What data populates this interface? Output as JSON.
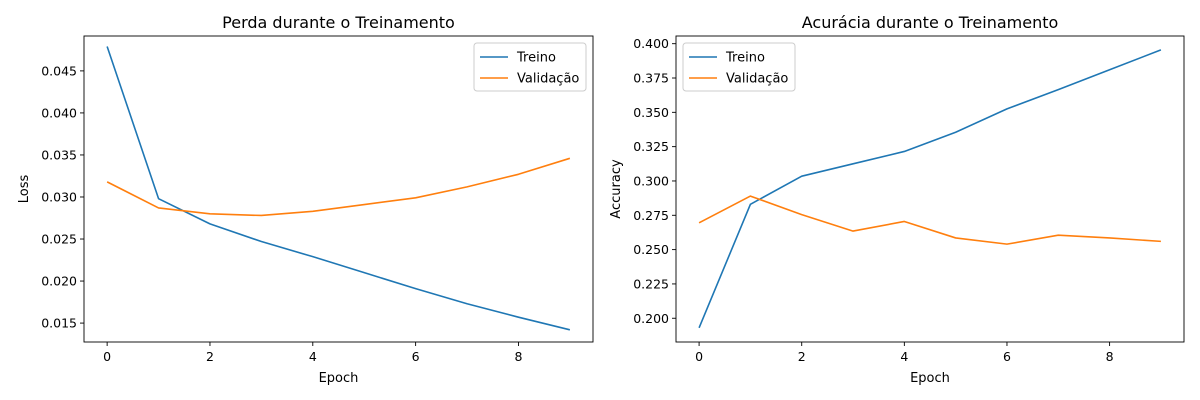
{
  "chart_data": [
    {
      "type": "line",
      "title": "Perda durante o Treinamento",
      "xlabel": "Epoch",
      "ylabel": "Loss",
      "x": [
        0,
        1,
        2,
        3,
        4,
        5,
        6,
        7,
        8,
        9
      ],
      "xlim": [
        -0.45,
        9.45
      ],
      "ylim": [
        0.01275,
        0.04915
      ],
      "xticks": [
        0,
        2,
        4,
        6,
        8
      ],
      "yticks": [
        0.015,
        0.02,
        0.025,
        0.03,
        0.035,
        0.04,
        0.045
      ],
      "ytick_labels": [
        "0.015",
        "0.020",
        "0.025",
        "0.030",
        "0.035",
        "0.040",
        "0.045"
      ],
      "legend_position": "top-right",
      "grid": false,
      "series": [
        {
          "name": "Treino",
          "color": "#1f77b4",
          "values": [
            0.0479,
            0.0298,
            0.0268,
            0.0247,
            0.0229,
            0.021,
            0.0191,
            0.0173,
            0.0157,
            0.0142
          ]
        },
        {
          "name": "Validação",
          "color": "#ff7f0e",
          "values": [
            0.0318,
            0.0287,
            0.028,
            0.0278,
            0.0283,
            0.0291,
            0.0299,
            0.0312,
            0.0327,
            0.0346
          ]
        }
      ]
    },
    {
      "type": "line",
      "title": "Acurácia durante o Treinamento",
      "xlabel": "Epoch",
      "ylabel": "Accuracy",
      "x": [
        0,
        1,
        2,
        3,
        4,
        5,
        6,
        7,
        8,
        9
      ],
      "xlim": [
        -0.45,
        9.45
      ],
      "ylim": [
        0.1827,
        0.4056
      ],
      "xticks": [
        0,
        2,
        4,
        6,
        8
      ],
      "yticks": [
        0.2,
        0.225,
        0.25,
        0.275,
        0.3,
        0.325,
        0.35,
        0.375,
        0.4
      ],
      "ytick_labels": [
        "0.200",
        "0.225",
        "0.250",
        "0.275",
        "0.300",
        "0.325",
        "0.350",
        "0.375",
        "0.400"
      ],
      "legend_position": "top-left",
      "grid": false,
      "series": [
        {
          "name": "Treino",
          "color": "#1f77b4",
          "values": [
            0.193,
            0.283,
            0.3035,
            0.3125,
            0.3215,
            0.3355,
            0.3525,
            0.3665,
            0.381,
            0.3955
          ]
        },
        {
          "name": "Validação",
          "color": "#ff7f0e",
          "values": [
            0.2695,
            0.289,
            0.2755,
            0.2635,
            0.2705,
            0.2585,
            0.254,
            0.2605,
            0.2585,
            0.256
          ]
        }
      ]
    }
  ]
}
